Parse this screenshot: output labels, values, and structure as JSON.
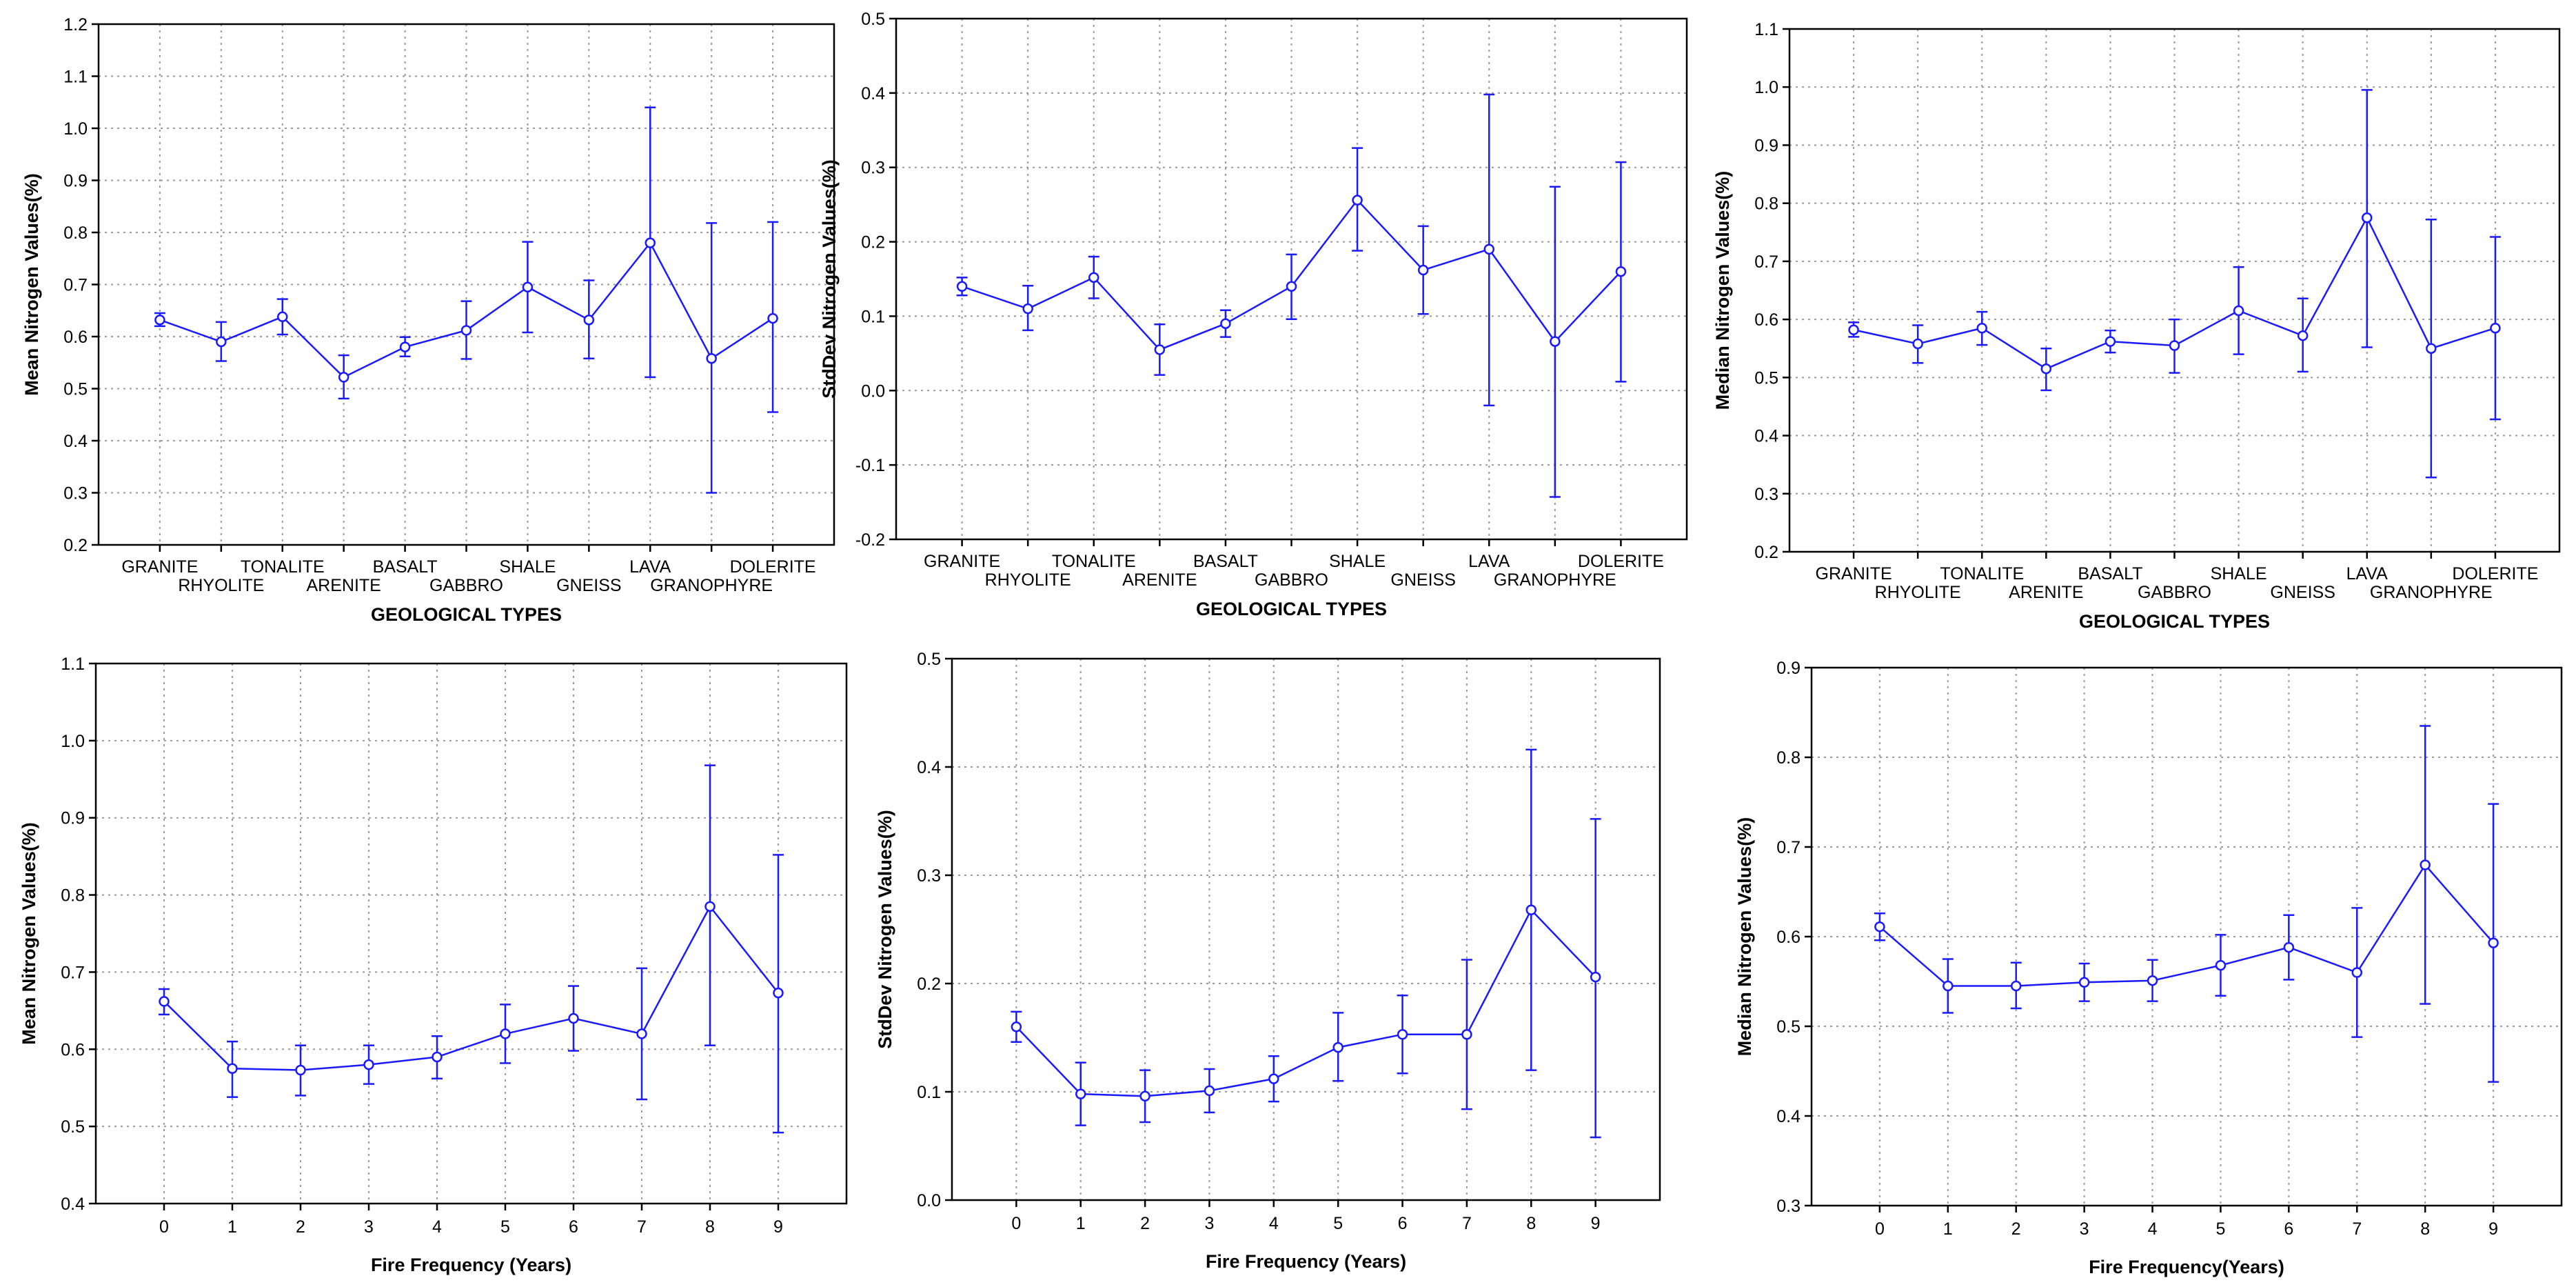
{
  "colors": {
    "series": "#1a1aff",
    "axis": "#000000",
    "grid": "#9a9a9a",
    "background": "#ffffff"
  },
  "chart_data": [
    {
      "type": "line",
      "id": "geo-mean",
      "xlabel": "GEOLOGICAL TYPES",
      "ylabel": "Mean Nitrogen Values(%)",
      "categories": [
        "GRANITE",
        "RHYOLITE",
        "TONALITE",
        "ARENITE",
        "BASALT",
        "GABBRO",
        "SHALE",
        "GNEISS",
        "LAVA",
        "GRANOPHYRE",
        "DOLERITE"
      ],
      "ylim": [
        0.2,
        1.2
      ],
      "yticks": [
        0.2,
        0.3,
        0.4,
        0.5,
        0.6,
        0.7,
        0.8,
        0.9,
        1.0,
        1.1,
        1.2
      ],
      "ytick_labels": [
        "0.2",
        "0.3",
        "0.4",
        "0.5",
        "0.6",
        "0.7",
        "0.8",
        "0.9",
        "1.0",
        "1.1",
        "1.2"
      ],
      "values": [
        0.632,
        0.59,
        0.638,
        0.522,
        0.58,
        0.612,
        0.695,
        0.632,
        0.78,
        0.558,
        0.635
      ],
      "err_low": [
        0.62,
        0.553,
        0.604,
        0.481,
        0.562,
        0.557,
        0.608,
        0.558,
        0.522,
        0.3,
        0.455
      ],
      "err_high": [
        0.645,
        0.628,
        0.672,
        0.564,
        0.599,
        0.668,
        0.782,
        0.708,
        1.04,
        0.818,
        0.82
      ],
      "grid": true
    },
    {
      "type": "line",
      "id": "geo-stddev",
      "xlabel": "GEOLOGICAL TYPES",
      "ylabel": "StdDev Nitrogen Values(%)",
      "categories": [
        "GRANITE",
        "RHYOLITE",
        "TONALITE",
        "ARENITE",
        "BASALT",
        "GABBRO",
        "SHALE",
        "GNEISS",
        "LAVA",
        "GRANOPHYRE",
        "DOLERITE"
      ],
      "ylim": [
        -0.2,
        0.5
      ],
      "yticks": [
        -0.2,
        -0.1,
        0.0,
        0.1,
        0.2,
        0.3,
        0.4,
        0.5
      ],
      "ytick_labels": [
        "-0.2",
        "-0.1",
        "0.0",
        "0.1",
        "0.2",
        "0.3",
        "0.4",
        "0.5"
      ],
      "values": [
        0.14,
        0.11,
        0.152,
        0.055,
        0.09,
        0.14,
        0.256,
        0.162,
        0.19,
        0.066,
        0.16
      ],
      "err_low": [
        0.128,
        0.081,
        0.124,
        0.021,
        0.072,
        0.096,
        0.188,
        0.103,
        -0.02,
        -0.143,
        0.012
      ],
      "err_high": [
        0.152,
        0.141,
        0.18,
        0.089,
        0.108,
        0.183,
        0.326,
        0.221,
        0.398,
        0.274,
        0.307
      ],
      "grid": true
    },
    {
      "type": "line",
      "id": "geo-median",
      "xlabel": "GEOLOGICAL TYPES",
      "ylabel": "Median Nitrogen Values(%)",
      "categories": [
        "GRANITE",
        "RHYOLITE",
        "TONALITE",
        "ARENITE",
        "BASALT",
        "GABBRO",
        "SHALE",
        "GNEISS",
        "LAVA",
        "GRANOPHYRE",
        "DOLERITE"
      ],
      "ylim": [
        0.2,
        1.1
      ],
      "yticks": [
        0.2,
        0.3,
        0.4,
        0.5,
        0.6,
        0.7,
        0.8,
        0.9,
        1.0,
        1.1
      ],
      "ytick_labels": [
        "0.2",
        "0.3",
        "0.4",
        "0.5",
        "0.6",
        "0.7",
        "0.8",
        "0.9",
        "1.0",
        "1.1"
      ],
      "values": [
        0.582,
        0.558,
        0.585,
        0.515,
        0.562,
        0.555,
        0.615,
        0.572,
        0.775,
        0.55,
        0.585
      ],
      "err_low": [
        0.57,
        0.525,
        0.556,
        0.478,
        0.543,
        0.508,
        0.54,
        0.51,
        0.552,
        0.328,
        0.428
      ],
      "err_high": [
        0.595,
        0.59,
        0.613,
        0.55,
        0.581,
        0.6,
        0.69,
        0.636,
        0.995,
        0.772,
        0.742
      ],
      "grid": true
    },
    {
      "type": "line",
      "id": "fire-mean",
      "xlabel": "Fire Frequency (Years)",
      "ylabel": "Mean Nitrogen Values(%)",
      "categories": [
        "0",
        "1",
        "2",
        "3",
        "4",
        "5",
        "6",
        "7",
        "8",
        "9"
      ],
      "ylim": [
        0.4,
        1.1
      ],
      "yticks": [
        0.4,
        0.5,
        0.6,
        0.7,
        0.8,
        0.9,
        1.0,
        1.1
      ],
      "ytick_labels": [
        "0.4",
        "0.5",
        "0.6",
        "0.7",
        "0.8",
        "0.9",
        "1.0",
        "1.1"
      ],
      "values": [
        0.662,
        0.575,
        0.573,
        0.58,
        0.59,
        0.62,
        0.64,
        0.62,
        0.785,
        0.673
      ],
      "err_low": [
        0.645,
        0.538,
        0.54,
        0.555,
        0.562,
        0.582,
        0.598,
        0.535,
        0.605,
        0.492
      ],
      "err_high": [
        0.678,
        0.61,
        0.605,
        0.605,
        0.617,
        0.658,
        0.682,
        0.705,
        0.968,
        0.852
      ],
      "grid": true
    },
    {
      "type": "line",
      "id": "fire-stddev",
      "xlabel": "Fire Frequency (Years)",
      "ylabel": "StdDev Nitrogen Values(%)",
      "categories": [
        "0",
        "1",
        "2",
        "3",
        "4",
        "5",
        "6",
        "7",
        "8",
        "9"
      ],
      "ylim": [
        0.0,
        0.5
      ],
      "yticks": [
        0.0,
        0.1,
        0.2,
        0.3,
        0.4,
        0.5
      ],
      "ytick_labels": [
        "0.0",
        "0.1",
        "0.2",
        "0.3",
        "0.4",
        "0.5"
      ],
      "values": [
        0.16,
        0.098,
        0.096,
        0.101,
        0.112,
        0.141,
        0.153,
        0.153,
        0.268,
        0.206
      ],
      "err_low": [
        0.146,
        0.069,
        0.072,
        0.081,
        0.091,
        0.11,
        0.117,
        0.084,
        0.12,
        0.058
      ],
      "err_high": [
        0.174,
        0.127,
        0.12,
        0.121,
        0.133,
        0.173,
        0.189,
        0.222,
        0.416,
        0.352
      ],
      "grid": true
    },
    {
      "type": "line",
      "id": "fire-median",
      "xlabel": "Fire Frequency(Years)",
      "ylabel": "Median Nitrogen Values(%)",
      "categories": [
        "0",
        "1",
        "2",
        "3",
        "4",
        "5",
        "6",
        "7",
        "8",
        "9"
      ],
      "ylim": [
        0.3,
        0.9
      ],
      "yticks": [
        0.3,
        0.4,
        0.5,
        0.6,
        0.7,
        0.8,
        0.9
      ],
      "ytick_labels": [
        "0.3",
        "0.4",
        "0.5",
        "0.6",
        "0.7",
        "0.8",
        "0.9"
      ],
      "values": [
        0.611,
        0.545,
        0.545,
        0.549,
        0.551,
        0.568,
        0.588,
        0.56,
        0.68,
        0.593
      ],
      "err_low": [
        0.596,
        0.515,
        0.52,
        0.528,
        0.528,
        0.534,
        0.552,
        0.488,
        0.525,
        0.438
      ],
      "err_high": [
        0.626,
        0.575,
        0.571,
        0.57,
        0.574,
        0.602,
        0.624,
        0.632,
        0.835,
        0.748
      ],
      "grid": true
    }
  ]
}
